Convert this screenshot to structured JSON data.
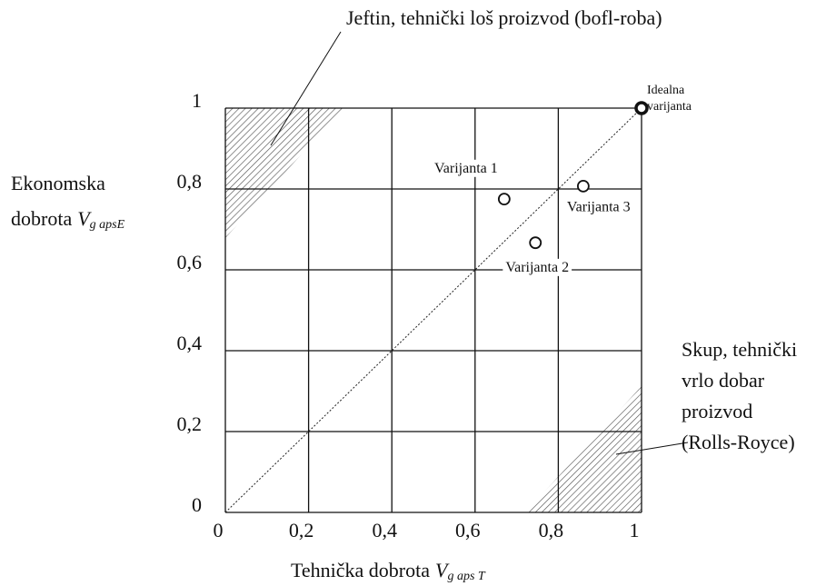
{
  "chart_data": {
    "type": "scatter",
    "x": [
      0.67,
      0.745,
      0.86,
      1
    ],
    "values": [
      0.775,
      0.667,
      0.807,
      1
    ],
    "point_labels": [
      [
        "Varijanta 1"
      ],
      [
        "Varijanta 2"
      ],
      [
        "Varijanta 3"
      ],
      [
        "Idealna",
        "varijanta"
      ]
    ],
    "xlim": [
      0,
      1
    ],
    "ylim": [
      0,
      1
    ],
    "xticks": [
      0,
      {
        "value": 0.2,
        "label": "0,2"
      },
      {
        "value": 0.4,
        "label": "0,4"
      },
      {
        "value": 0.6,
        "label": "0,6"
      },
      {
        "value": 0.8,
        "label": "0,8"
      },
      1
    ],
    "yticks": [
      0,
      {
        "value": 0.2,
        "label": "0,2"
      },
      {
        "value": 0.4,
        "label": "0,4"
      },
      {
        "value": 0.6,
        "label": "0,6"
      },
      {
        "value": 0.8,
        "label": "0,8"
      },
      1
    ],
    "grid": true,
    "xlabel": {
      "text": "Tehnička dobrota",
      "symbol": "V",
      "subscript": "g aps T"
    },
    "ylabel": {
      "lines": [
        "Ekonomska",
        "dobrota"
      ],
      "symbol": "V",
      "subscript": "g apsE"
    },
    "annotations": [
      {
        "lines": [
          "Jeftin, tehnički loš proizvod (bofl-roba)"
        ]
      },
      {
        "lines": [
          "Skup, tehnički",
          "vrlo dobar",
          "proizvod",
          "(Rolls-Royce)"
        ]
      }
    ]
  }
}
